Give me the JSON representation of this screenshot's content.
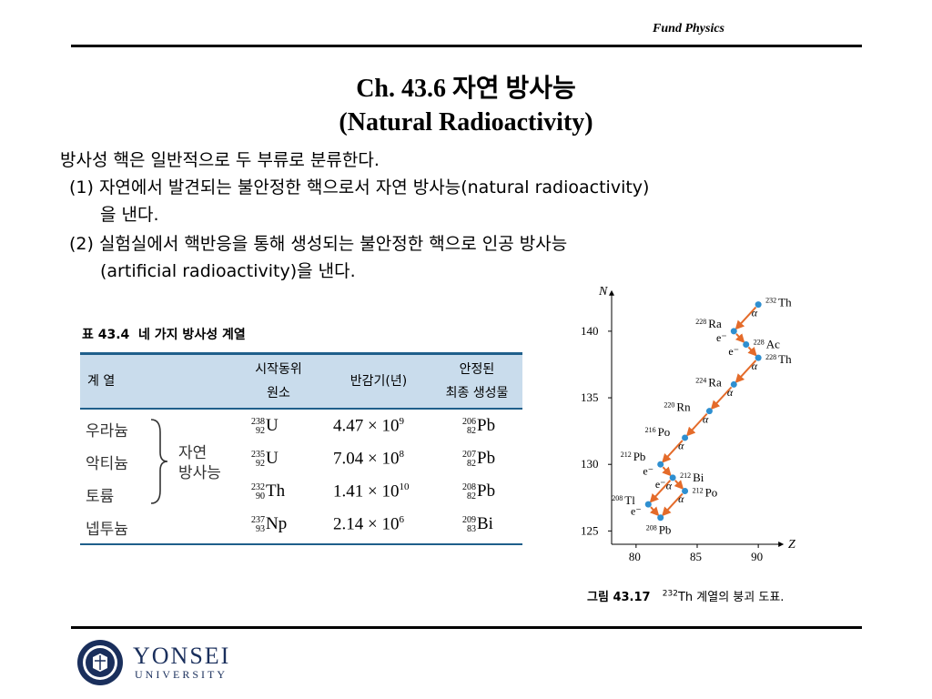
{
  "header": {
    "label": "Fund Physics"
  },
  "title": {
    "line1": "Ch. 43.6 자연 방사능",
    "line2": "(Natural Radioactivity)"
  },
  "body": {
    "intro": "방사성 핵은 일반적으로 두 부류로 분류한다.",
    "item1_line1": "(1) 자연에서 발견되는 불안정한 핵으로서 자연 방사능(natural radioactivity)",
    "item1_line2": "을 낸다.",
    "item2_line1": "(2) 실험실에서 핵반응을 통해 생성되는 불안정한 핵으로 인공 방사능",
    "item2_line2": "(artificial radioactivity)을 낸다."
  },
  "table": {
    "caption_num": "표 43.4",
    "caption_text": "네 가지 방사성 계열",
    "headers": {
      "series": "계  열",
      "start_1": "시작동위",
      "start_2": "원소",
      "halflife": "반감기(년)",
      "stable_1": "안정된",
      "stable_2": "최종 생성물"
    },
    "brace_label_1": "자연",
    "brace_label_2": "방사능",
    "rows": [
      {
        "series": "우라늄",
        "iso_a": "238",
        "iso_z": "92",
        "iso_sym": "U",
        "half_mant": "4.47 × 10",
        "half_exp": "9",
        "stab_a": "206",
        "stab_z": "82",
        "stab_sym": "Pb"
      },
      {
        "series": "악티늄",
        "iso_a": "235",
        "iso_z": "92",
        "iso_sym": "U",
        "half_mant": "7.04 × 10",
        "half_exp": "8",
        "stab_a": "207",
        "stab_z": "82",
        "stab_sym": "Pb"
      },
      {
        "series": "토륨",
        "iso_a": "232",
        "iso_z": "90",
        "iso_sym": "Th",
        "half_mant": "1.41 × 10",
        "half_exp": "10",
        "stab_a": "208",
        "stab_z": "82",
        "stab_sym": "Pb"
      },
      {
        "series": "넵투늄",
        "iso_a": "237",
        "iso_z": "93",
        "iso_sym": "Np",
        "half_mant": "2.14 × 10",
        "half_exp": "6",
        "stab_a": "209",
        "stab_z": "83",
        "stab_sym": "Bi"
      }
    ]
  },
  "chart_data": {
    "type": "scatter",
    "xlabel": "Z",
    "ylabel": "N",
    "xlim": [
      78,
      92
    ],
    "ylim": [
      124,
      143
    ],
    "xticks": [
      "80",
      "85",
      "90"
    ],
    "yticks": [
      "125",
      "130",
      "135",
      "140"
    ],
    "points": [
      {
        "label_a": "232",
        "label_sym": "Th",
        "z": 90,
        "n": 142
      },
      {
        "label_a": "228",
        "label_sym": "Ra",
        "z": 88,
        "n": 140
      },
      {
        "label_a": "228",
        "label_sym": "Ac",
        "z": 89,
        "n": 139
      },
      {
        "label_a": "228",
        "label_sym": "Th",
        "z": 90,
        "n": 138
      },
      {
        "label_a": "224",
        "label_sym": "Ra",
        "z": 88,
        "n": 136
      },
      {
        "label_a": "220",
        "label_sym": "Rn",
        "z": 86,
        "n": 134
      },
      {
        "label_a": "216",
        "label_sym": "Po",
        "z": 84,
        "n": 132
      },
      {
        "label_a": "212",
        "label_sym": "Pb",
        "z": 82,
        "n": 130
      },
      {
        "label_a": "212",
        "label_sym": "Bi",
        "z": 83,
        "n": 129
      },
      {
        "label_a": "212",
        "label_sym": "Po",
        "z": 84,
        "n": 128
      },
      {
        "label_a": "208",
        "label_sym": "Tl",
        "z": 81,
        "n": 127
      },
      {
        "label_a": "208",
        "label_sym": "Pb",
        "z": 82,
        "n": 126
      }
    ],
    "decays": [
      {
        "from": 0,
        "to": 1,
        "kind": "α"
      },
      {
        "from": 1,
        "to": 2,
        "kind": "e⁻"
      },
      {
        "from": 2,
        "to": 3,
        "kind": "e⁻"
      },
      {
        "from": 3,
        "to": 4,
        "kind": "α"
      },
      {
        "from": 4,
        "to": 5,
        "kind": "α"
      },
      {
        "from": 5,
        "to": 6,
        "kind": "α"
      },
      {
        "from": 6,
        "to": 7,
        "kind": "α"
      },
      {
        "from": 7,
        "to": 8,
        "kind": "e⁻"
      },
      {
        "from": 8,
        "to": 9,
        "kind": "e⁻"
      },
      {
        "from": 8,
        "to": 10,
        "kind": "α"
      },
      {
        "from": 9,
        "to": 11,
        "kind": "α"
      },
      {
        "from": 10,
        "to": 11,
        "kind": "e⁻"
      }
    ],
    "caption_num": "그림 43.17",
    "caption_text": "계열의 붕괴 도표.",
    "caption_iso_a": "232",
    "caption_iso_sym": "Th",
    "colors": {
      "line": "#e46b2a",
      "point": "#2f8fd0"
    }
  },
  "footer": {
    "name": "YONSEI",
    "sub": "UNIVERSITY"
  }
}
